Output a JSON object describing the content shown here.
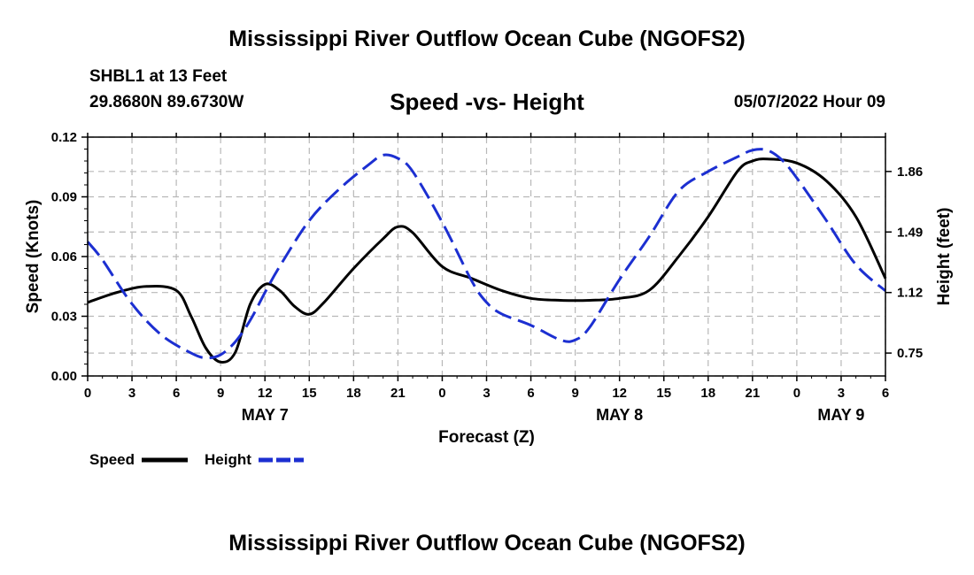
{
  "header": {
    "main_title": "Mississippi River Outflow Ocean Cube (NGOFS2)",
    "station": "SHBL1 at 13 Feet",
    "coords": "29.8680N  89.6730W",
    "subtitle": "Speed -vs- Height",
    "datetime": "05/07/2022 Hour 09"
  },
  "footer": {
    "main_title_repeat": "Mississippi River Outflow Ocean Cube (NGOFS2)"
  },
  "chart_data": {
    "type": "line",
    "title": "Speed -vs- Height",
    "xlabel": "Forecast (Z)",
    "ylabel": "Speed (Knots)",
    "y2label": "Height (feet)",
    "x_unit": "hours since 2022-05-07 00Z",
    "xlim": [
      0,
      54
    ],
    "ylim": [
      0,
      0.12
    ],
    "y2lim": [
      0.61,
      2.07
    ],
    "grid": true,
    "legend_position": "bottom-left",
    "x_ticks": [
      0,
      3,
      6,
      9,
      12,
      15,
      18,
      21,
      24,
      27,
      30,
      33,
      36,
      39,
      42,
      45,
      48,
      51,
      54
    ],
    "x_tick_labels": [
      "0",
      "3",
      "6",
      "9",
      "12",
      "15",
      "18",
      "21",
      "0",
      "3",
      "6",
      "9",
      "12",
      "15",
      "18",
      "21",
      "0",
      "3",
      "6"
    ],
    "y_ticks": [
      0,
      0.03,
      0.06,
      0.09,
      0.12
    ],
    "y_tick_labels": [
      "0.00",
      "0.03",
      "0.06",
      "0.09",
      "0.12"
    ],
    "y2_ticks": [
      0.75,
      1.12,
      1.49,
      1.86
    ],
    "y2_tick_labels": [
      "0.75",
      "1.12",
      "1.49",
      "1.86"
    ],
    "date_labels": [
      {
        "x": 12,
        "label": "MAY 7"
      },
      {
        "x": 36,
        "label": "MAY 8"
      },
      {
        "x": 51,
        "label": "MAY 9"
      }
    ],
    "series": [
      {
        "name": "Speed",
        "axis": "left",
        "color": "#000000",
        "dash": "solid",
        "x": [
          0,
          2,
          4,
          6,
          7,
          8,
          9,
          10,
          11,
          12,
          13,
          14,
          15,
          16,
          18,
          20,
          21,
          22,
          24,
          26,
          28,
          30,
          32,
          34,
          36,
          38,
          40,
          42,
          44,
          45,
          46,
          48,
          50,
          52,
          54
        ],
        "values": [
          0.037,
          0.042,
          0.045,
          0.043,
          0.03,
          0.014,
          0.007,
          0.012,
          0.036,
          0.046,
          0.043,
          0.035,
          0.031,
          0.037,
          0.054,
          0.069,
          0.075,
          0.072,
          0.055,
          0.049,
          0.043,
          0.039,
          0.038,
          0.038,
          0.039,
          0.043,
          0.06,
          0.08,
          0.103,
          0.108,
          0.109,
          0.107,
          0.098,
          0.08,
          0.049
        ]
      },
      {
        "name": "Height",
        "axis": "right",
        "color": "#1c2fd1",
        "dash": "dashed",
        "x": [
          0,
          1,
          3,
          5,
          7,
          8,
          9,
          10,
          11,
          12,
          13,
          15,
          17,
          19,
          20,
          21,
          22,
          24,
          26,
          27,
          28,
          30,
          32,
          33,
          34,
          36,
          38,
          40,
          42,
          44,
          45,
          46,
          47,
          48,
          50,
          52,
          54
        ],
        "values": [
          1.43,
          1.32,
          1.05,
          0.86,
          0.75,
          0.72,
          0.74,
          0.82,
          0.95,
          1.12,
          1.28,
          1.56,
          1.75,
          1.9,
          1.96,
          1.94,
          1.86,
          1.55,
          1.19,
          1.06,
          0.99,
          0.92,
          0.83,
          0.83,
          0.91,
          1.2,
          1.46,
          1.74,
          1.86,
          1.95,
          1.99,
          1.99,
          1.93,
          1.82,
          1.56,
          1.29,
          1.13
        ]
      }
    ]
  }
}
